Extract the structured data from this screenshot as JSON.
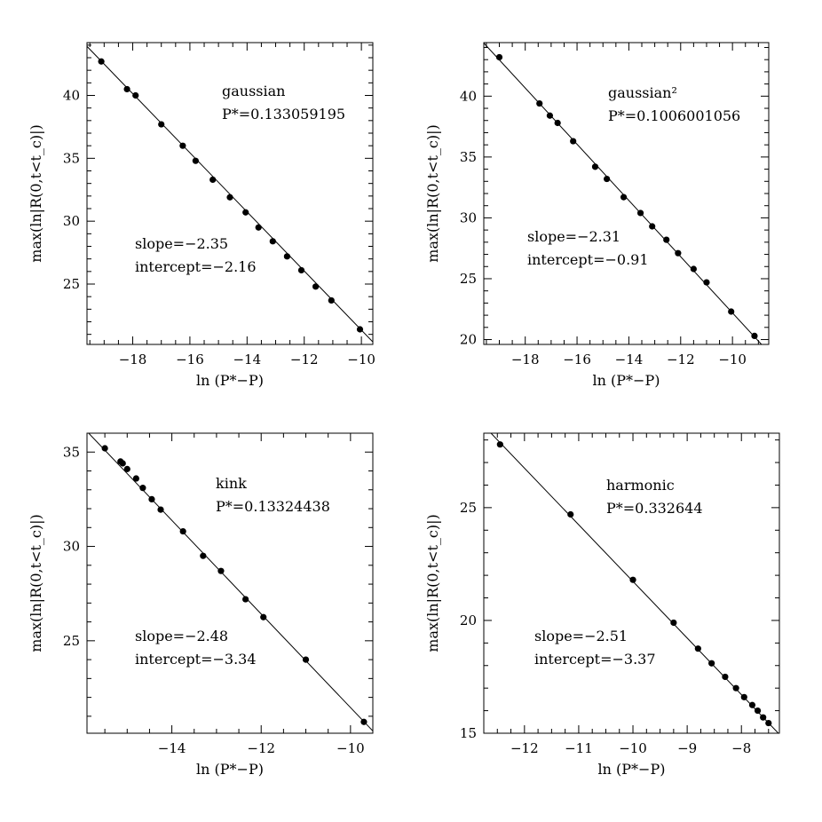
{
  "chart_data": [
    {
      "type": "scatter",
      "xlabel": "ln  (P*−P)",
      "ylabel": "max(ln|R(0,t<t_c)|)",
      "xlim": [
        -19.6,
        -9.6
      ],
      "ylim": [
        20.2,
        44.2
      ],
      "xticks": [
        -18,
        -16,
        -14,
        -12,
        -10
      ],
      "yticks": [
        25,
        30,
        35,
        40
      ],
      "annotations": [
        "gaussian",
        "P*=0.133059195",
        "slope=−2.35",
        "intercept=−2.16"
      ],
      "points": {
        "x": [
          -19.1,
          -18.2,
          -17.9,
          -17.0,
          -16.25,
          -15.8,
          -15.2,
          -14.6,
          -14.05,
          -13.6,
          -13.1,
          -12.6,
          -12.1,
          -11.6,
          -11.05,
          -10.05
        ],
        "y": [
          42.7,
          40.5,
          40.0,
          37.7,
          36.0,
          34.8,
          33.3,
          31.9,
          30.7,
          29.5,
          28.4,
          27.2,
          26.1,
          24.8,
          23.7,
          21.4
        ]
      },
      "fit": {
        "slope": -2.35,
        "intercept": -2.16
      }
    },
    {
      "type": "scatter",
      "xlabel": "ln  (P*−P)",
      "ylabel": "max(ln|R(0,t<t_c)|)",
      "xlim": [
        -19.6,
        -8.6
      ],
      "ylim": [
        19.6,
        44.4
      ],
      "xticks": [
        -18,
        -16,
        -14,
        -12,
        -10
      ],
      "yticks": [
        20,
        25,
        30,
        35,
        40
      ],
      "annotations": [
        "gaussian²",
        "P*=0.1006001056",
        "slope=−2.31",
        "intercept=−0.91"
      ],
      "points": {
        "x": [
          -19.0,
          -17.45,
          -17.05,
          -16.75,
          -16.15,
          -15.3,
          -14.85,
          -14.2,
          -13.55,
          -13.1,
          -12.55,
          -12.1,
          -11.5,
          -11.0,
          -10.05,
          -9.15
        ],
        "y": [
          43.2,
          39.4,
          38.4,
          37.8,
          36.3,
          34.2,
          33.2,
          31.7,
          30.4,
          29.3,
          28.2,
          27.1,
          25.8,
          24.7,
          22.3,
          20.3
        ]
      },
      "fit": {
        "slope": -2.31,
        "intercept": -0.91
      }
    },
    {
      "type": "scatter",
      "xlabel": "ln  (P*−P)",
      "ylabel": "max(ln|R(0,t<t_c)|)",
      "xlim": [
        -15.9,
        -9.5
      ],
      "ylim": [
        20.1,
        36.0
      ],
      "xticks": [
        -14,
        -12,
        -10
      ],
      "yticks": [
        25,
        30,
        35
      ],
      "annotations": [
        "kink",
        "P*=0.13324438",
        "slope=−2.48",
        "intercept=−3.34"
      ],
      "points": {
        "x": [
          -15.5,
          -15.15,
          -15.1,
          -15.0,
          -14.8,
          -14.65,
          -14.45,
          -14.25,
          -13.75,
          -13.3,
          -12.9,
          -12.35,
          -11.95,
          -11.0,
          -9.7
        ],
        "y": [
          35.2,
          34.5,
          34.4,
          34.1,
          33.6,
          33.1,
          32.5,
          31.95,
          30.8,
          29.5,
          28.7,
          27.2,
          26.25,
          24.0,
          20.7
        ]
      },
      "fit": {
        "slope": -2.48,
        "intercept": -3.34
      }
    },
    {
      "type": "scatter",
      "xlabel": "ln  (P*−P)",
      "ylabel": "max(ln|R(0,t<t_c)|)",
      "xlim": [
        -12.75,
        -7.3
      ],
      "ylim": [
        15.0,
        28.3
      ],
      "xticks": [
        -12,
        -11,
        -10,
        -9,
        -8
      ],
      "yticks": [
        15,
        20,
        25
      ],
      "annotations": [
        "harmonic",
        "P*=0.332644",
        "slope=−2.51",
        "intercept=−3.37"
      ],
      "points": {
        "x": [
          -12.45,
          -11.15,
          -10.0,
          -9.25,
          -8.8,
          -8.55,
          -8.3,
          -8.1,
          -7.95,
          -7.8,
          -7.7,
          -7.6,
          -7.5
        ],
        "y": [
          27.8,
          24.7,
          21.8,
          19.9,
          18.75,
          18.1,
          17.5,
          17.0,
          16.6,
          16.25,
          16.0,
          15.7,
          15.45
        ]
      },
      "fit": {
        "slope": -2.51,
        "intercept": -3.37
      }
    }
  ]
}
